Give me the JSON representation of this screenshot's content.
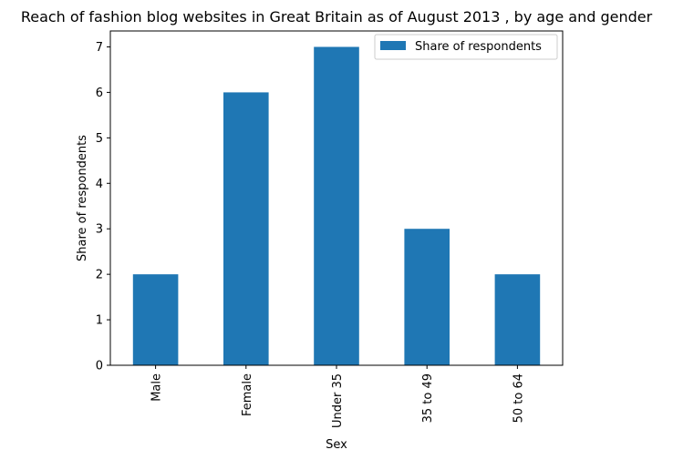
{
  "chart_data": {
    "type": "bar",
    "title": "Reach of fashion blog websites in Great Britain as of August 2013 , by age and gender",
    "xlabel": "Sex",
    "ylabel": "Share of respondents",
    "categories": [
      "Male",
      "Female",
      "Under 35",
      "35 to 49",
      "50 to 64"
    ],
    "series": [
      {
        "name": "Share of respondents",
        "values": [
          2,
          6,
          7,
          3,
          2
        ],
        "color": "#1f77b4"
      }
    ],
    "ylim": [
      0,
      7.35
    ],
    "yticks": [
      0,
      1,
      2,
      3,
      4,
      5,
      6,
      7
    ],
    "grid": false,
    "legend_position": "top-right"
  }
}
